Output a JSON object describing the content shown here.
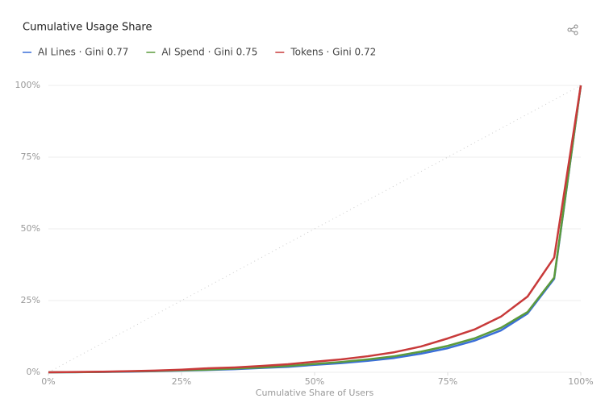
{
  "chart_data": {
    "type": "line",
    "title": "Cumulative Usage Share",
    "x_label": "Cumulative Share of Users",
    "x": [
      0,
      5,
      10,
      15,
      20,
      25,
      30,
      35,
      40,
      45,
      50,
      55,
      60,
      65,
      70,
      75,
      80,
      85,
      90,
      95,
      100
    ],
    "series": [
      {
        "name": "AI Lines · Gini 0.77",
        "color": "#3a6fd8",
        "values": [
          0,
          0.05,
          0.1,
          0.2,
          0.4,
          0.6,
          0.8,
          1.1,
          1.5,
          1.9,
          2.6,
          3.2,
          4,
          5,
          6.5,
          8.4,
          11,
          14.6,
          20.5,
          32.6,
          100
        ]
      },
      {
        "name": "AI Spend · Gini 0.75",
        "color": "#5b9a3c",
        "values": [
          0,
          0.05,
          0.15,
          0.3,
          0.45,
          0.7,
          0.9,
          1.3,
          1.7,
          2.2,
          2.9,
          3.6,
          4.5,
          5.6,
          7.2,
          9.2,
          11.8,
          15.5,
          21,
          33,
          100
        ]
      },
      {
        "name": "Tokens · Gini 0.72",
        "color": "#c83a3a",
        "values": [
          0,
          0.1,
          0.2,
          0.4,
          0.6,
          0.9,
          1.4,
          1.7,
          2.2,
          2.8,
          3.7,
          4.5,
          5.6,
          7,
          9,
          11.8,
          14.9,
          19.4,
          26.4,
          40,
          100
        ]
      }
    ],
    "xlim": [
      0,
      100
    ],
    "ylim": [
      0,
      100
    ],
    "xticks": [
      {
        "value": 0,
        "label": "0%"
      },
      {
        "value": 25,
        "label": "25%"
      },
      {
        "value": 50,
        "label": "50%"
      },
      {
        "value": 75,
        "label": "75%"
      },
      {
        "value": 100,
        "label": "100%"
      }
    ],
    "yticks": [
      {
        "value": 0,
        "label": "0%"
      },
      {
        "value": 25,
        "label": "25%"
      },
      {
        "value": 50,
        "label": "50%"
      },
      {
        "value": 75,
        "label": "75%"
      },
      {
        "value": 100,
        "label": "100%"
      }
    ],
    "grid": true
  }
}
